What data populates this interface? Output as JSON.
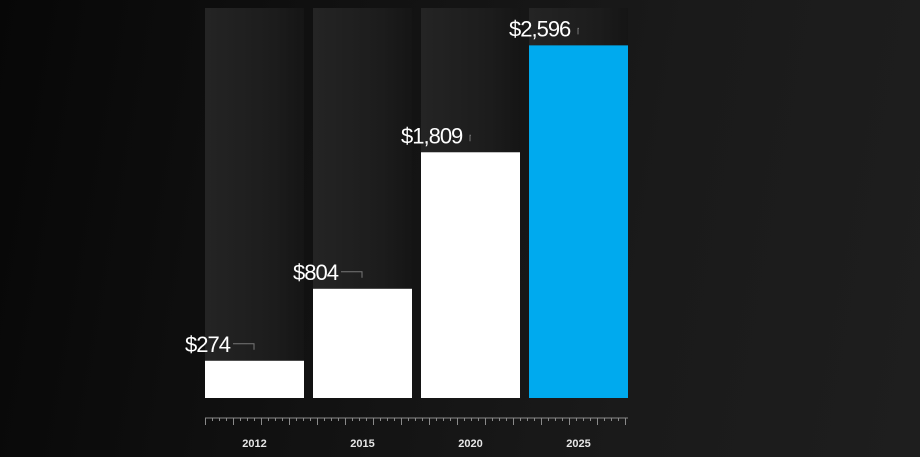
{
  "chart_data": {
    "type": "bar",
    "categories": [
      "2012",
      "2015",
      "2020",
      "2025"
    ],
    "values": [
      274,
      804,
      1809,
      2596
    ],
    "value_labels": [
      "$274",
      "$804",
      "$1,809",
      "$2,596"
    ],
    "title": "",
    "xlabel": "",
    "ylabel": "",
    "ylim": [
      0,
      2930
    ],
    "grid": false,
    "legend": "none",
    "colors": {
      "default_bar": "#ffffff",
      "highlight_bar": "#00aaee",
      "column_background": "#1d1d1d",
      "axis": "#8a8a8a",
      "leader_line": "#777777"
    },
    "highlight_index": 3
  }
}
